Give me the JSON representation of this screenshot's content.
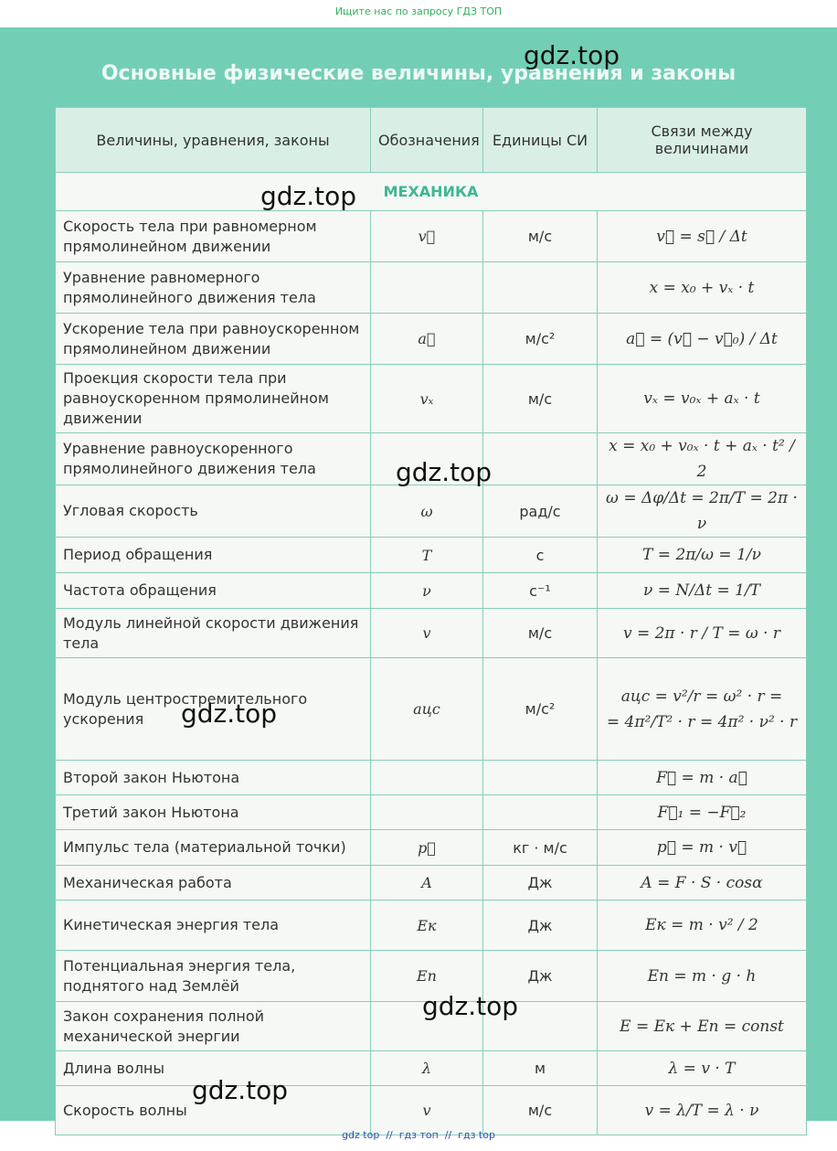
{
  "top_note": "Ищите нас по запросу ГДЗ ТОП",
  "title": "Основные физические величины, уравнения и законы",
  "table": {
    "header": [
      "Величины, уравнения, законы",
      "Обозначения",
      "Единицы СИ",
      "Связи между величинами"
    ],
    "section": "МЕХАНИКА",
    "rows": [
      [
        "Скорость тела при равномерном прямолинейном движении",
        "v⃗",
        "м/с",
        "v⃗ = s⃗ / Δt"
      ],
      [
        "Уравнение равномерного прямолинейного движения тела",
        null,
        null,
        "x = x₀ + vₓ · t"
      ],
      [
        "Ускорение тела при равноускоренном прямолинейном движении",
        "a⃗",
        "м/с²",
        "a⃗ = (v⃗ − v⃗₀) / Δt"
      ],
      [
        "Проекция скорости тела при равноускоренном прямолинейном движении",
        "vₓ",
        "м/с",
        "vₓ = v₀ₓ + aₓ · t"
      ],
      [
        "Уравнение равноускоренного прямолинейного движения тела",
        null,
        null,
        "x = x₀ + v₀ₓ · t + aₓ · t² / 2"
      ],
      [
        "Угловая скорость",
        "ω",
        "рад/с",
        "ω = Δφ/Δt = 2π/T = 2π · ν"
      ],
      [
        "Период обращения",
        "T",
        "с",
        "T = 2π/ω = 1/ν"
      ],
      [
        "Частота обращения",
        "ν",
        "с⁻¹",
        "ν = N/Δt = 1/T"
      ],
      [
        "Модуль линейной скорости движения тела",
        "v",
        "м/с",
        "v = 2π · r / T = ω · r"
      ],
      [
        "Модуль центростремительного ускорения",
        "aцс",
        "м/с²",
        [
          "aцс = v²/r = ω² · r =",
          "= 4π²/T² · r = 4π² · ν² · r"
        ]
      ],
      [
        "Второй закон Ньютона",
        null,
        null,
        "F⃗ = m · a⃗"
      ],
      [
        "Третий закон Ньютона",
        null,
        null,
        "F⃗₁ = −F⃗₂"
      ],
      [
        "Импульс тела (материальной точки)",
        "p⃗",
        "кг · м/с",
        "p⃗ = m · v⃗"
      ],
      [
        "Механическая работа",
        "A",
        "Дж",
        "A = F · S · cosα"
      ],
      [
        "Кинетическая энергия тела",
        "Eк",
        "Дж",
        "Eк = m · v² / 2"
      ],
      [
        "Потенциальная энергия тела, поднятого над Землёй",
        "Eп",
        "Дж",
        "Eп = m · g · h"
      ],
      [
        "Закон сохранения полной механической энергии",
        null,
        null,
        "E = Eк + Eп = const"
      ],
      [
        "Длина волны",
        "λ",
        "м",
        "λ = v · T"
      ],
      [
        "Скорость волны",
        "v",
        "м/с",
        "v = λ/T = λ · ν"
      ]
    ]
  },
  "watermarks": [
    "gdz.top",
    "gdz.top",
    "gdz.top",
    "gdz.top",
    "gdz.top",
    "gdz.top"
  ],
  "footer": "gdz top  //  гдз топ  //  гдз top"
}
